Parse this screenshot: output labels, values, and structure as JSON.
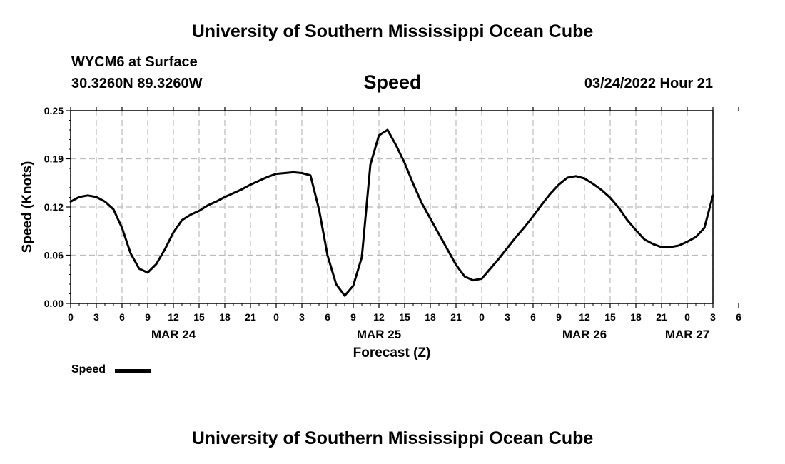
{
  "header": {
    "title_top": "University of Southern Mississippi Ocean Cube",
    "station": "WYCM6 at Surface",
    "coords": "30.3260N  89.3260W",
    "variable": "Speed",
    "date_hour": "03/24/2022 Hour 21",
    "title_bottom": "University of Southern Mississippi Ocean Cube"
  },
  "legend": {
    "label": "Speed"
  },
  "colors": {
    "line": "#000000",
    "grid": "#bbbbbb",
    "axis": "#000000"
  },
  "chart_data": {
    "type": "line",
    "ylabel": "Speed (Knots)",
    "xlabel": "Forecast (Z)",
    "ylim": [
      0,
      0.25
    ],
    "xlim": [
      0,
      75
    ],
    "y_ticks": [
      "0.00",
      "0.06",
      "0.12",
      "0.19",
      "0.25"
    ],
    "x_tick_labels": [
      "0",
      "3",
      "6",
      "9",
      "12",
      "15",
      "18",
      "21",
      "0",
      "3",
      "6",
      "9",
      "12",
      "15",
      "18",
      "21",
      "0",
      "3",
      "6",
      "9",
      "12",
      "15",
      "18",
      "21",
      "0",
      "3",
      "6"
    ],
    "date_labels": [
      {
        "label": "MAR 24",
        "x": 12
      },
      {
        "label": "MAR 25",
        "x": 36
      },
      {
        "label": "MAR 26",
        "x": 60
      },
      {
        "label": "MAR 27",
        "x": 72
      }
    ],
    "grid": true,
    "legend_position": "bottom-left",
    "series": [
      {
        "name": "Speed",
        "x": [
          0,
          1,
          2,
          3,
          4,
          5,
          6,
          7,
          8,
          9,
          10,
          11,
          12,
          13,
          14,
          15,
          16,
          17,
          18,
          19,
          20,
          21,
          22,
          23,
          24,
          25,
          26,
          27,
          28,
          29,
          30,
          31,
          32,
          33,
          34,
          35,
          36,
          37,
          38,
          39,
          40,
          41,
          42,
          43,
          44,
          45,
          46,
          47,
          48,
          49,
          50,
          51,
          52,
          53,
          54,
          55,
          56,
          57,
          58,
          59,
          60,
          61,
          62,
          63,
          64,
          65,
          66,
          67,
          68,
          69,
          70,
          71,
          72,
          73,
          74,
          75
        ],
        "y": [
          0.132,
          0.138,
          0.14,
          0.138,
          0.132,
          0.122,
          0.098,
          0.065,
          0.045,
          0.04,
          0.051,
          0.07,
          0.092,
          0.108,
          0.115,
          0.12,
          0.127,
          0.132,
          0.138,
          0.143,
          0.148,
          0.154,
          0.159,
          0.164,
          0.168,
          0.169,
          0.17,
          0.169,
          0.166,
          0.122,
          0.062,
          0.025,
          0.01,
          0.023,
          0.06,
          0.18,
          0.218,
          0.225,
          0.205,
          0.182,
          0.155,
          0.13,
          0.11,
          0.09,
          0.07,
          0.05,
          0.035,
          0.03,
          0.032,
          0.045,
          0.058,
          0.072,
          0.086,
          0.099,
          0.113,
          0.128,
          0.142,
          0.154,
          0.163,
          0.165,
          0.162,
          0.155,
          0.147,
          0.137,
          0.124,
          0.108,
          0.095,
          0.083,
          0.077,
          0.073,
          0.073,
          0.075,
          0.08,
          0.086,
          0.098,
          0.14
        ]
      }
    ]
  }
}
